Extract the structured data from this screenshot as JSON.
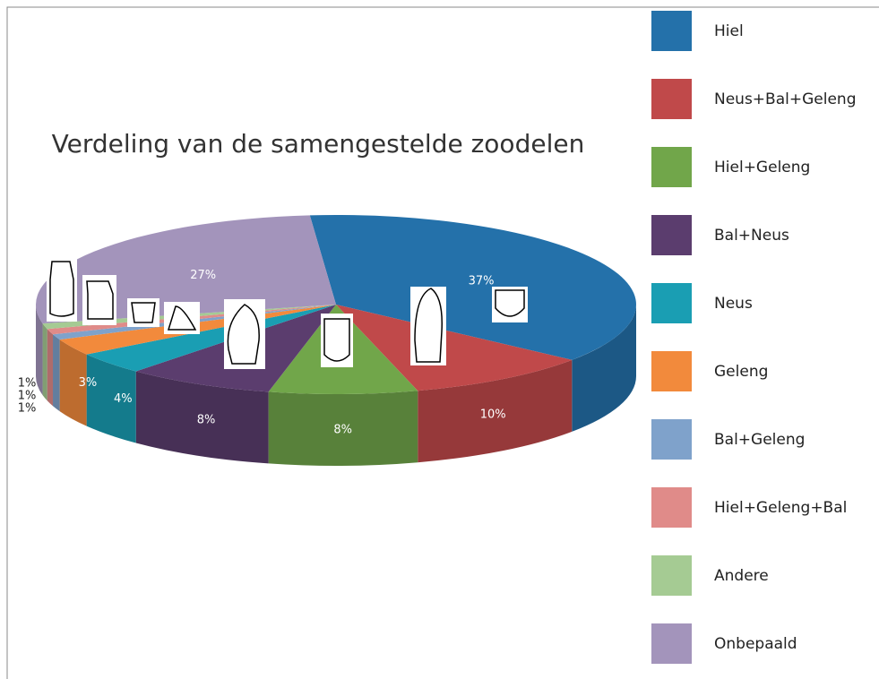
{
  "chart_data": {
    "type": "pie",
    "title": "Verdeling van de samengestelde zoodelen",
    "categories": [
      "Hiel",
      "Neus+Bal+Geleng",
      "Hiel+Geleng",
      "Bal+Neus",
      "Neus",
      "Geleng",
      "Bal+Geleng",
      "Hiel+Geleng+Bal",
      "Andere",
      "Onbepaald"
    ],
    "values": [
      37,
      10,
      8,
      8,
      4,
      3,
      1,
      1,
      1,
      27
    ],
    "value_labels": [
      "37%",
      "10%",
      "8%",
      "8%",
      "4%",
      "3%",
      "1%",
      "1%",
      "1%",
      "27%"
    ],
    "colors": [
      "#2471aa",
      "#c0494a",
      "#71a64a",
      "#5b3d6e",
      "#1a9eb3",
      "#f28a3c",
      "#7fa2cb",
      "#e08b89",
      "#a5cb93",
      "#a394bb"
    ],
    "legend": "right"
  }
}
